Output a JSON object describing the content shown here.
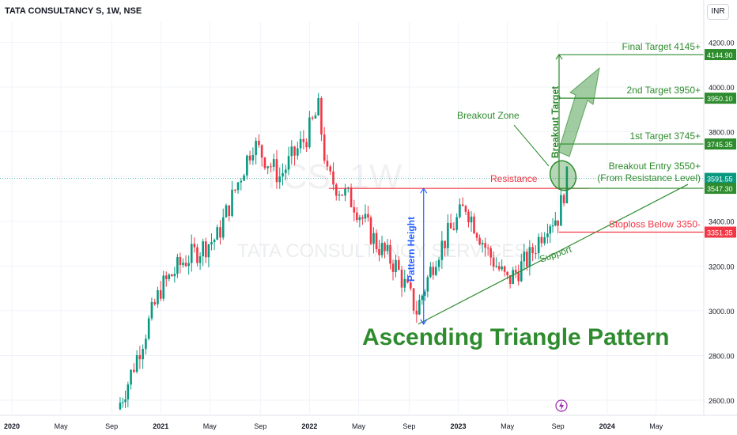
{
  "header": {
    "symbol_title": "TATA CONSULTANCY S, 1W, NSE",
    "currency_button": "INR"
  },
  "watermark": {
    "ticker": "TCS, 1W",
    "name": "TATA CONSULTANCY SERVICES"
  },
  "colors": {
    "up": "#089981",
    "down": "#f23645",
    "annotation_green": "#2e8b2e",
    "level_red": "#f23645",
    "pattern_blue": "#2962ff"
  },
  "chart_data": {
    "type": "candlestick",
    "title": "Ascending Triangle Pattern",
    "interval": "1W",
    "ylim": [
      2540,
      4290
    ],
    "y_ticks": [
      2600,
      2800,
      3000,
      3200,
      3400,
      3600,
      3800,
      4000,
      4200
    ],
    "y_tick_labels": [
      "2600.00",
      "2800.00",
      "3000.00",
      "3200.00",
      "3400.00",
      "3600.00",
      "3800.00",
      "4000.00",
      "4200.00"
    ],
    "x_ticks": [
      {
        "label": "2020",
        "year": 2020.0
      },
      {
        "label": "May",
        "year": 2020.33
      },
      {
        "label": "Sep",
        "year": 2020.67
      },
      {
        "label": "2021",
        "year": 2021.0
      },
      {
        "label": "May",
        "year": 2021.33
      },
      {
        "label": "Sep",
        "year": 2021.67
      },
      {
        "label": "2022",
        "year": 2022.0
      },
      {
        "label": "May",
        "year": 2022.33
      },
      {
        "label": "Sep",
        "year": 2022.67
      },
      {
        "label": "2023",
        "year": 2023.0
      },
      {
        "label": "May",
        "year": 2023.33
      },
      {
        "label": "Sep",
        "year": 2023.67
      },
      {
        "label": "2024",
        "year": 2024.0
      },
      {
        "label": "May",
        "year": 2024.33
      }
    ],
    "price_labels": [
      {
        "text": "4144.90",
        "value": 4144.9,
        "color": "#2e8b2e"
      },
      {
        "text": "3950.10",
        "value": 3950.1,
        "color": "#2e8b2e"
      },
      {
        "text": "3745.35",
        "value": 3745.35,
        "color": "#2e8b2e"
      },
      {
        "text": "3591.55",
        "value": 3591.55,
        "color": "#089981"
      },
      {
        "text": "3547.30",
        "value": 3547.3,
        "color": "#2e8b2e"
      },
      {
        "text": "3351.35",
        "value": 3351.35,
        "color": "#f23645"
      }
    ],
    "last_price": 3591.55,
    "levels": [
      {
        "label": "Final Target 4145+",
        "value": 4144.9,
        "color": "#2e8b2e"
      },
      {
        "label": "2nd Target 3950+",
        "value": 3950.1,
        "color": "#2e8b2e"
      },
      {
        "label": "1st Target 3745+",
        "value": 3745.35,
        "color": "#2e8b2e"
      },
      {
        "label": "Breakout Entry 3550+",
        "label2": "(From Resistance Level)",
        "value": 3547.3,
        "color": "#2e8b2e"
      },
      {
        "label": "Stoploss Below 3350-",
        "value": 3351.35,
        "color": "#f23645"
      }
    ],
    "annotations": {
      "resistance": "Resistance",
      "support": "Support",
      "pattern_height": "Pattern Height",
      "breakout_zone": "Breakout Zone",
      "breakout_target": "Breakout Target"
    },
    "resistance_line": {
      "from_year": 2022.13,
      "to_year": 2023.88,
      "value": 3547
    },
    "support_line": {
      "from": {
        "year": 2022.73,
        "value": 2940
      },
      "to": {
        "year": 2023.94,
        "value": 3560
      }
    },
    "pattern_height": {
      "year": 2022.73,
      "from": 2940,
      "to": 3547
    },
    "anchors": [
      {
        "year": 2020.71,
        "value": 2560
      },
      {
        "year": 2020.78,
        "value": 2680
      },
      {
        "year": 2021.0,
        "value": 3100
      },
      {
        "year": 2021.15,
        "value": 3220
      },
      {
        "year": 2021.38,
        "value": 3330
      },
      {
        "year": 2021.62,
        "value": 3750
      },
      {
        "year": 2021.8,
        "value": 3600
      },
      {
        "year": 2021.98,
        "value": 3780
      },
      {
        "year": 2022.06,
        "value": 3900
      },
      {
        "year": 2022.12,
        "value": 3600
      },
      {
        "year": 2022.3,
        "value": 3480
      },
      {
        "year": 2022.45,
        "value": 3300
      },
      {
        "year": 2022.58,
        "value": 3200
      },
      {
        "year": 2022.72,
        "value": 3000
      },
      {
        "year": 2022.85,
        "value": 3250
      },
      {
        "year": 2023.05,
        "value": 3470
      },
      {
        "year": 2023.2,
        "value": 3260
      },
      {
        "year": 2023.33,
        "value": 3130
      },
      {
        "year": 2023.48,
        "value": 3240
      },
      {
        "year": 2023.6,
        "value": 3400
      },
      {
        "year": 2023.67,
        "value": 3420
      },
      {
        "year": 2023.73,
        "value": 3590
      }
    ]
  }
}
